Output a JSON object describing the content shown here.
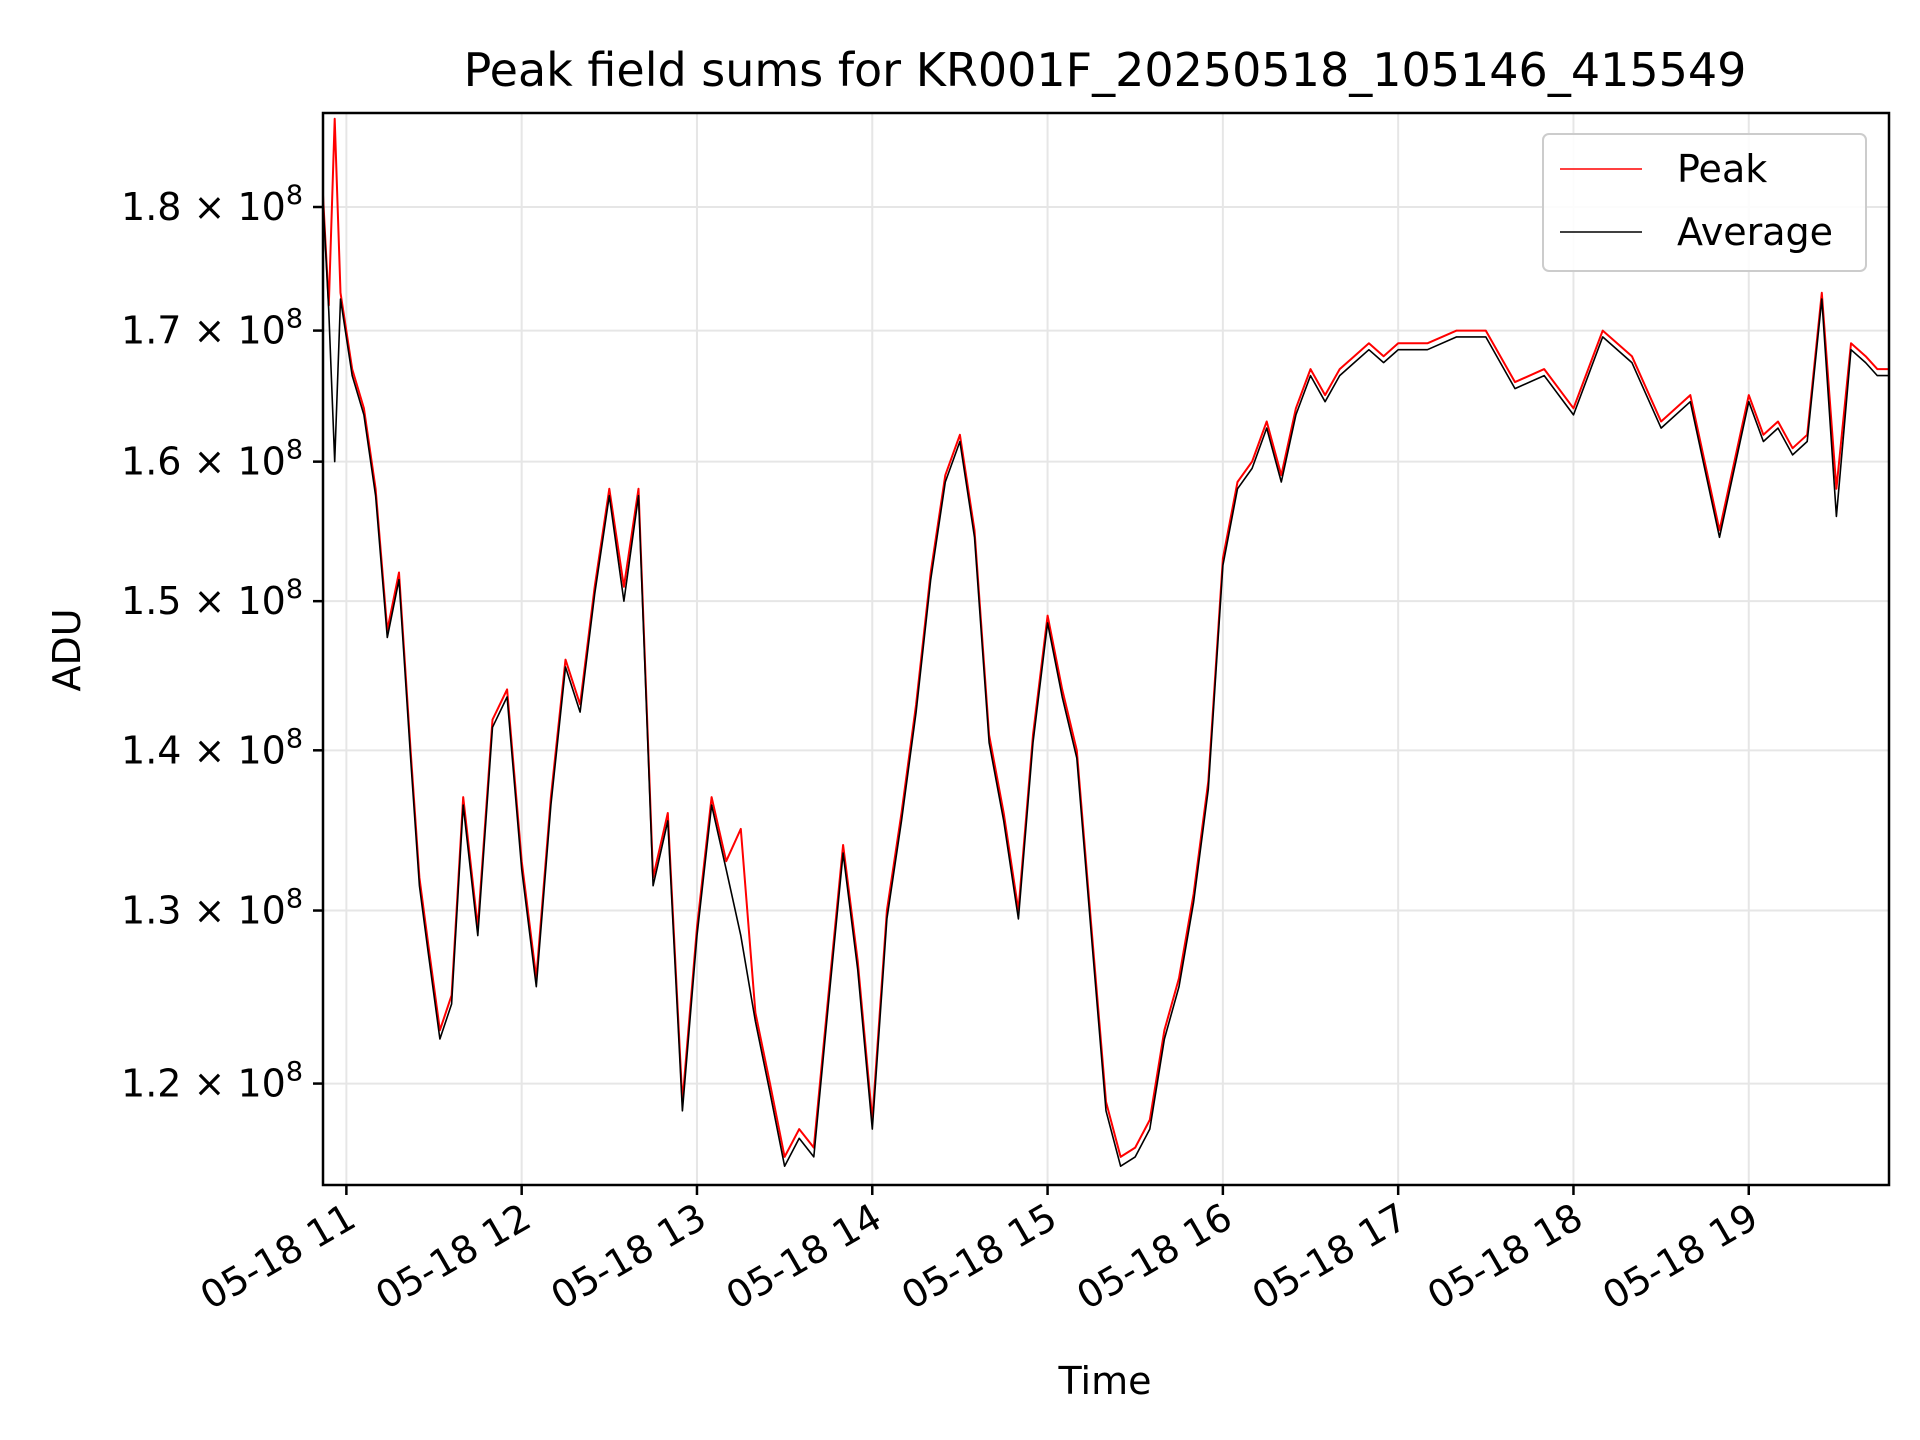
{
  "chart_data": {
    "type": "line",
    "title": "Peak field sums for KR001F_20250518_105146_415549",
    "xlabel": "Time",
    "ylabel": "ADU",
    "yscale": "log",
    "grid": true,
    "legend_position": "top-right",
    "xlim": [
      "05-18 10:52",
      "05-18 19:48"
    ],
    "ylim": [
      114500000,
      188000000
    ],
    "x_ticks": [
      "05-18 11",
      "05-18 12",
      "05-18 13",
      "05-18 14",
      "05-18 15",
      "05-18 16",
      "05-18 17",
      "05-18 18",
      "05-18 19"
    ],
    "y_ticks": [
      {
        "value": 120000000,
        "mantissa": "1.2",
        "exp": "8"
      },
      {
        "value": 130000000,
        "mantissa": "1.3",
        "exp": "8"
      },
      {
        "value": 140000000,
        "mantissa": "1.4",
        "exp": "8"
      },
      {
        "value": 150000000,
        "mantissa": "1.5",
        "exp": "8"
      },
      {
        "value": 160000000,
        "mantissa": "1.6",
        "exp": "8"
      },
      {
        "value": 170000000,
        "mantissa": "1.7",
        "exp": "8"
      },
      {
        "value": 180000000,
        "mantissa": "1.8",
        "exp": "8"
      }
    ],
    "x": [
      "05-18 10:52",
      "05-18 10:54",
      "05-18 10:56",
      "05-18 10:58",
      "05-18 11:02",
      "05-18 11:06",
      "05-18 11:10",
      "05-18 11:14",
      "05-18 11:18",
      "05-18 11:22",
      "05-18 11:25",
      "05-18 11:28",
      "05-18 11:32",
      "05-18 11:36",
      "05-18 11:40",
      "05-18 11:45",
      "05-18 11:50",
      "05-18 11:55",
      "05-18 12:00",
      "05-18 12:05",
      "05-18 12:10",
      "05-18 12:15",
      "05-18 12:20",
      "05-18 12:25",
      "05-18 12:30",
      "05-18 12:35",
      "05-18 12:40",
      "05-18 12:45",
      "05-18 12:50",
      "05-18 12:55",
      "05-18 13:00",
      "05-18 13:05",
      "05-18 13:10",
      "05-18 13:15",
      "05-18 13:20",
      "05-18 13:25",
      "05-18 13:30",
      "05-18 13:35",
      "05-18 13:40",
      "05-18 13:45",
      "05-18 13:50",
      "05-18 13:55",
      "05-18 14:00",
      "05-18 14:05",
      "05-18 14:10",
      "05-18 14:15",
      "05-18 14:20",
      "05-18 14:25",
      "05-18 14:30",
      "05-18 14:35",
      "05-18 14:40",
      "05-18 14:45",
      "05-18 14:50",
      "05-18 14:55",
      "05-18 15:00",
      "05-18 15:05",
      "05-18 15:10",
      "05-18 15:15",
      "05-18 15:20",
      "05-18 15:25",
      "05-18 15:30",
      "05-18 15:35",
      "05-18 15:40",
      "05-18 15:45",
      "05-18 15:50",
      "05-18 15:55",
      "05-18 16:00",
      "05-18 16:05",
      "05-18 16:10",
      "05-18 16:15",
      "05-18 16:20",
      "05-18 16:25",
      "05-18 16:30",
      "05-18 16:35",
      "05-18 16:40",
      "05-18 16:45",
      "05-18 16:50",
      "05-18 16:55",
      "05-18 17:00",
      "05-18 17:10",
      "05-18 17:20",
      "05-18 17:30",
      "05-18 17:40",
      "05-18 17:50",
      "05-18 18:00",
      "05-18 18:10",
      "05-18 18:20",
      "05-18 18:30",
      "05-18 18:40",
      "05-18 18:50",
      "05-18 19:00",
      "05-18 19:05",
      "05-18 19:10",
      "05-18 19:15",
      "05-18 19:20",
      "05-18 19:25",
      "05-18 19:30",
      "05-18 19:35",
      "05-18 19:40",
      "05-18 19:44",
      "05-18 19:48"
    ],
    "series": [
      {
        "name": "Peak",
        "color": "#ff0000",
        "values": [
          181000000,
          172000000,
          187500000,
          173000000,
          167000000,
          164000000,
          158000000,
          148000000,
          152000000,
          140000000,
          132000000,
          128000000,
          123000000,
          125000000,
          137000000,
          129000000,
          142000000,
          144000000,
          133000000,
          126000000,
          137000000,
          146000000,
          143000000,
          151000000,
          158000000,
          151000000,
          158000000,
          132000000,
          136000000,
          119000000,
          129000000,
          137000000,
          133000000,
          135000000,
          124000000,
          120000000,
          116000000,
          117500000,
          116500000,
          125000000,
          134000000,
          127000000,
          118000000,
          130000000,
          136000000,
          143000000,
          152000000,
          159000000,
          162000000,
          155000000,
          141000000,
          136000000,
          130000000,
          141000000,
          149000000,
          144000000,
          140000000,
          129000000,
          119000000,
          116000000,
          116500000,
          118000000,
          123000000,
          126000000,
          131000000,
          138000000,
          153000000,
          158500000,
          160000000,
          163000000,
          159000000,
          164000000,
          167000000,
          165000000,
          167000000,
          168000000,
          169000000,
          168000000,
          169000000,
          169000000,
          170000000,
          170000000,
          166000000,
          167000000,
          164000000,
          170000000,
          168000000,
          163000000,
          165000000,
          155000000,
          165000000,
          162000000,
          163000000,
          161000000,
          162000000,
          173000000,
          158000000,
          169000000,
          168000000,
          167000000,
          167000000
        ]
      },
      {
        "name": "Average",
        "color": "#000000",
        "values": [
          180500000,
          171500000,
          160000000,
          172500000,
          166500000,
          163500000,
          157500000,
          147500000,
          151500000,
          139500000,
          131500000,
          127500000,
          122500000,
          124500000,
          136500000,
          128500000,
          141500000,
          143500000,
          132500000,
          125500000,
          136500000,
          145500000,
          142500000,
          150500000,
          157500000,
          150000000,
          157500000,
          131500000,
          135500000,
          118500000,
          128500000,
          136500000,
          132500000,
          128500000,
          123500000,
          119500000,
          115500000,
          117000000,
          116000000,
          124500000,
          133500000,
          126500000,
          117500000,
          129500000,
          135500000,
          142500000,
          151500000,
          158500000,
          161500000,
          154500000,
          140500000,
          135500000,
          129500000,
          140500000,
          148500000,
          143500000,
          139500000,
          128500000,
          118500000,
          115500000,
          116000000,
          117500000,
          122500000,
          125500000,
          130500000,
          137500000,
          152500000,
          158000000,
          159500000,
          162500000,
          158500000,
          163500000,
          166500000,
          164500000,
          166500000,
          167500000,
          168500000,
          167500000,
          168500000,
          168500000,
          169500000,
          169500000,
          165500000,
          166500000,
          163500000,
          169500000,
          167500000,
          162500000,
          164500000,
          154500000,
          164500000,
          161500000,
          162500000,
          160500000,
          161500000,
          172500000,
          156000000,
          168500000,
          167500000,
          166500000,
          166500000
        ]
      }
    ]
  }
}
